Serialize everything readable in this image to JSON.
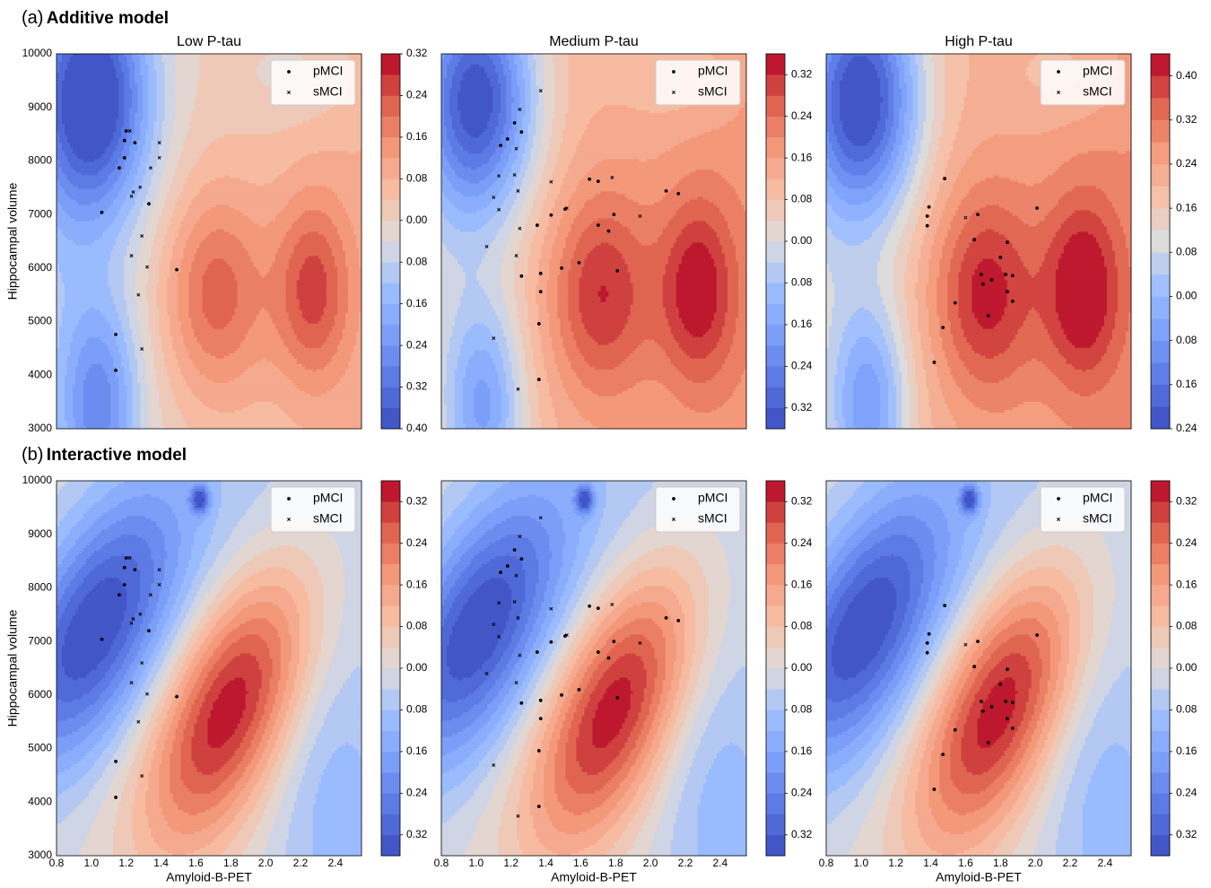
{
  "rows": [
    {
      "label": "(a)",
      "title": "Additive model"
    },
    {
      "label": "(b)",
      "title": "Interactive model"
    }
  ],
  "chart_data": [
    {
      "type": "contour",
      "title": "Low P-tau",
      "ylabel": "Hippocampal volume",
      "xlim": [
        0.8,
        2.55
      ],
      "ylim": [
        3000,
        10000
      ],
      "yticks": [
        3000,
        4000,
        5000,
        6000,
        7000,
        8000,
        9000,
        10000
      ],
      "legend": "upper right",
      "series": [
        {
          "name": "pMCI",
          "marker": "dot",
          "color": "#000000",
          "x": [
            1.2,
            1.19,
            1.25,
            1.19,
            1.16,
            1.33,
            1.06,
            1.49,
            1.14,
            1.14
          ],
          "values": [
            8560,
            8380,
            8340,
            8060,
            7870,
            7200,
            7040,
            5970,
            4760,
            4090
          ]
        },
        {
          "name": "sMCI",
          "marker": "cross",
          "color": "#000000",
          "x": [
            1.22,
            1.39,
            1.39,
            1.34,
            1.28,
            1.24,
            1.23,
            1.29,
            1.23,
            1.32,
            1.27,
            1.29
          ],
          "values": [
            8560,
            8340,
            8060,
            7870,
            7510,
            7420,
            7340,
            6600,
            6230,
            6020,
            5500,
            4490
          ]
        }
      ],
      "colorbar": {
        "colormap": "coolwarm",
        "lim": [
          -0.4,
          0.32
        ],
        "ticks": [
          0.32,
          0.24,
          0.16,
          0.08,
          {
            "value": 0,
            "label": "0.00"
          },
          {
            "value": -0.08,
            "label": "0.08"
          },
          {
            "value": -0.16,
            "label": "0.16"
          },
          {
            "value": -0.24,
            "label": "0.24"
          },
          {
            "value": -0.32,
            "label": "0.32"
          },
          {
            "value": -0.4,
            "label": "0.40"
          }
        ]
      }
    },
    {
      "type": "contour",
      "title": "Medium P-tau",
      "xlim": [
        0.8,
        2.55
      ],
      "ylim": [
        3000,
        10000
      ],
      "legend": "upper right",
      "series": [
        {
          "name": "pMCI",
          "marker": "dot",
          "color": "#000000",
          "x": [
            1.18,
            1.22,
            1.26,
            1.14,
            1.43,
            1.35,
            1.26,
            1.37,
            1.37,
            1.49,
            1.59,
            1.65,
            1.7,
            1.79,
            1.7,
            1.76,
            1.81,
            2.09,
            2.16,
            1.36,
            1.36,
            1.51
          ],
          "values": [
            8410,
            8710,
            8540,
            8290,
            6990,
            6800,
            5850,
            5900,
            5560,
            6000,
            6100,
            7660,
            7620,
            7000,
            6800,
            6690,
            5950,
            7440,
            7390,
            4960,
            3920,
            7100
          ]
        },
        {
          "name": "sMCI",
          "marker": "cross",
          "color": "#000000",
          "x": [
            1.37,
            1.25,
            1.23,
            1.22,
            1.24,
            1.13,
            1.1,
            1.13,
            1.25,
            1.23,
            1.06,
            1.1,
            1.24,
            1.52,
            1.78,
            1.94,
            1.43
          ],
          "values": [
            9310,
            8960,
            8230,
            7740,
            7440,
            7720,
            7320,
            7090,
            6740,
            6230,
            6400,
            4690,
            3740,
            7120,
            7690,
            6970,
            7610
          ]
        }
      ],
      "colorbar": {
        "colormap": "coolwarm",
        "lim": [
          -0.36,
          0.36
        ],
        "ticks": [
          0.32,
          0.24,
          0.16,
          0.08,
          {
            "value": 0,
            "label": "0.00"
          },
          {
            "value": -0.08,
            "label": "0.08"
          },
          {
            "value": -0.16,
            "label": "0.16"
          },
          {
            "value": -0.24,
            "label": "0.24"
          },
          {
            "value": -0.32,
            "label": "0.32"
          }
        ]
      }
    },
    {
      "type": "contour",
      "title": "High P-tau",
      "xlim": [
        0.8,
        2.55
      ],
      "ylim": [
        3000,
        10000
      ],
      "legend": "upper right",
      "series": [
        {
          "name": "pMCI",
          "marker": "dot",
          "color": "#000000",
          "x": [
            1.48,
            1.39,
            1.38,
            1.38,
            1.67,
            1.65,
            1.84,
            1.8,
            1.69,
            1.75,
            1.7,
            1.83,
            1.87,
            1.84,
            1.87,
            1.73,
            1.54,
            1.47,
            1.42,
            2.01
          ],
          "values": [
            7670,
            7140,
            6970,
            6790,
            7000,
            6530,
            6480,
            6200,
            5880,
            5780,
            5700,
            5880,
            5860,
            5560,
            5380,
            5110,
            5350,
            4890,
            4240,
            7120
          ]
        },
        {
          "name": "sMCI",
          "marker": "cross",
          "color": "#000000",
          "x": [
            1.6
          ],
          "values": [
            6940
          ]
        }
      ],
      "colorbar": {
        "colormap": "coolwarm",
        "lim": [
          -0.24,
          0.44
        ],
        "ticks": [
          {
            "value": 0.4,
            "label": "0.40"
          },
          0.32,
          0.24,
          0.16,
          0.08,
          {
            "value": 0,
            "label": "0.00"
          },
          {
            "value": -0.08,
            "label": "0.08"
          },
          {
            "value": -0.16,
            "label": "0.16"
          },
          {
            "value": -0.24,
            "label": "0.24"
          }
        ]
      }
    },
    {
      "type": "contour",
      "xlabel": "Amyloid-B-PET",
      "ylabel": "Hippocampal volume",
      "xlim": [
        0.8,
        2.55
      ],
      "ylim": [
        3000,
        10000
      ],
      "xticks": [
        0.8,
        {
          "value": 1,
          "label": "1.0"
        },
        1.2,
        1.4,
        1.6,
        1.8,
        {
          "value": 2,
          "label": "2.0"
        },
        2.2,
        2.4
      ],
      "yticks": [
        3000,
        4000,
        5000,
        6000,
        7000,
        8000,
        9000,
        10000
      ],
      "legend": "upper right",
      "series": [
        {
          "name": "pMCI",
          "marker": "dot",
          "color": "#000000",
          "x": [
            1.2,
            1.19,
            1.25,
            1.19,
            1.16,
            1.33,
            1.06,
            1.49,
            1.14,
            1.14
          ],
          "values": [
            8560,
            8380,
            8340,
            8060,
            7870,
            7200,
            7040,
            5970,
            4760,
            4090
          ]
        },
        {
          "name": "sMCI",
          "marker": "cross",
          "color": "#000000",
          "x": [
            1.22,
            1.39,
            1.39,
            1.34,
            1.28,
            1.24,
            1.23,
            1.29,
            1.23,
            1.32,
            1.27,
            1.29
          ],
          "values": [
            8560,
            8340,
            8060,
            7870,
            7510,
            7420,
            7340,
            6600,
            6230,
            6020,
            5500,
            4490
          ]
        }
      ],
      "colorbar": {
        "colormap": "coolwarm",
        "lim": [
          -0.36,
          0.36
        ],
        "ticks": [
          0.32,
          0.24,
          0.16,
          0.08,
          {
            "value": 0,
            "label": "0.00"
          },
          {
            "value": -0.08,
            "label": "0.08"
          },
          {
            "value": -0.16,
            "label": "0.16"
          },
          {
            "value": -0.24,
            "label": "0.24"
          },
          {
            "value": -0.32,
            "label": "0.32"
          }
        ]
      }
    },
    {
      "type": "contour",
      "xlabel": "Amyloid-B-PET",
      "xlim": [
        0.8,
        2.55
      ],
      "ylim": [
        3000,
        10000
      ],
      "xticks": [
        0.8,
        {
          "value": 1,
          "label": "1.0"
        },
        1.2,
        1.4,
        1.6,
        1.8,
        {
          "value": 2,
          "label": "2.0"
        },
        2.2,
        2.4
      ],
      "legend": "upper right",
      "series": [
        {
          "name": "pMCI",
          "marker": "dot",
          "color": "#000000",
          "x": [
            1.18,
            1.22,
            1.26,
            1.14,
            1.43,
            1.35,
            1.26,
            1.37,
            1.37,
            1.49,
            1.59,
            1.65,
            1.7,
            1.79,
            1.7,
            1.76,
            1.81,
            2.09,
            2.16,
            1.36,
            1.36,
            1.51
          ],
          "values": [
            8410,
            8710,
            8540,
            8290,
            6990,
            6800,
            5850,
            5900,
            5560,
            6000,
            6100,
            7660,
            7620,
            7000,
            6800,
            6690,
            5950,
            7440,
            7390,
            4960,
            3920,
            7100
          ]
        },
        {
          "name": "sMCI",
          "marker": "cross",
          "color": "#000000",
          "x": [
            1.37,
            1.25,
            1.23,
            1.22,
            1.24,
            1.13,
            1.1,
            1.13,
            1.25,
            1.23,
            1.06,
            1.1,
            1.24,
            1.52,
            1.78,
            1.94,
            1.43
          ],
          "values": [
            9310,
            8960,
            8230,
            7740,
            7440,
            7720,
            7320,
            7090,
            6740,
            6230,
            6400,
            4690,
            3740,
            7120,
            7690,
            6970,
            7610
          ]
        }
      ],
      "colorbar": {
        "colormap": "coolwarm",
        "lim": [
          -0.36,
          0.36
        ],
        "ticks": [
          0.32,
          0.24,
          0.16,
          0.08,
          {
            "value": 0,
            "label": "0.00"
          },
          {
            "value": -0.08,
            "label": "0.08"
          },
          {
            "value": -0.16,
            "label": "0.16"
          },
          {
            "value": -0.24,
            "label": "0.24"
          },
          {
            "value": -0.32,
            "label": "0.32"
          }
        ]
      }
    },
    {
      "type": "contour",
      "xlabel": "Amyloid-B-PET",
      "xlim": [
        0.8,
        2.55
      ],
      "ylim": [
        3000,
        10000
      ],
      "xticks": [
        0.8,
        {
          "value": 1,
          "label": "1.0"
        },
        1.2,
        1.4,
        1.6,
        1.8,
        {
          "value": 2,
          "label": "2.0"
        },
        2.2,
        2.4
      ],
      "legend": "upper right",
      "series": [
        {
          "name": "pMCI",
          "marker": "dot",
          "color": "#000000",
          "x": [
            1.48,
            1.39,
            1.38,
            1.38,
            1.67,
            1.65,
            1.84,
            1.8,
            1.69,
            1.75,
            1.7,
            1.83,
            1.87,
            1.84,
            1.87,
            1.73,
            1.54,
            1.47,
            1.42,
            2.01
          ],
          "values": [
            7670,
            7140,
            6970,
            6790,
            7000,
            6530,
            6480,
            6200,
            5880,
            5780,
            5700,
            5880,
            5860,
            5560,
            5380,
            5110,
            5350,
            4890,
            4240,
            7120
          ]
        },
        {
          "name": "sMCI",
          "marker": "cross",
          "color": "#000000",
          "x": [
            1.6
          ],
          "values": [
            6940
          ]
        }
      ],
      "colorbar": {
        "colormap": "coolwarm",
        "lim": [
          -0.36,
          0.36
        ],
        "ticks": [
          0.32,
          0.24,
          0.16,
          0.08,
          {
            "value": 0,
            "label": "0.00"
          },
          {
            "value": -0.08,
            "label": "0.08"
          },
          {
            "value": -0.16,
            "label": "0.16"
          },
          {
            "value": -0.24,
            "label": "0.24"
          },
          {
            "value": -0.32,
            "label": "0.32"
          }
        ]
      }
    }
  ]
}
